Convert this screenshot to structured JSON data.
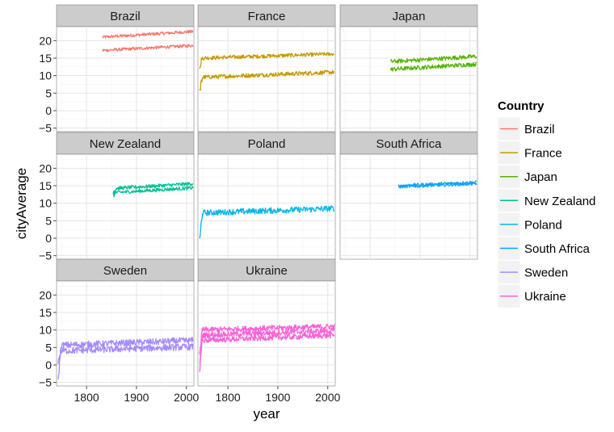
{
  "chart_data": {
    "type": "line",
    "facet_by": "Country",
    "xlabel": "year",
    "ylabel": "cityAverage",
    "xlim": [
      1740,
      2015
    ],
    "ylim": [
      -6,
      24
    ],
    "x_ticks": [
      1800,
      1900,
      2000
    ],
    "y_ticks": [
      -5,
      0,
      5,
      10,
      15,
      20
    ],
    "grid": true,
    "legend": {
      "title": "Country",
      "position": "right"
    },
    "panels": [
      {
        "country": "Brazil",
        "color": "#F8766D",
        "x_range": [
          1832,
          2013
        ],
        "lines": [
          {
            "start": 21.0,
            "end": 22.6,
            "noise": 0.45
          },
          {
            "start": 17.2,
            "end": 18.6,
            "noise": 0.45
          }
        ]
      },
      {
        "country": "France",
        "color": "#C49A00",
        "x_range": [
          1743,
          2013
        ],
        "lines": [
          {
            "start": 15.0,
            "end": 16.2,
            "noise": 0.55,
            "dip": 12.5
          },
          {
            "start": 9.5,
            "end": 11.0,
            "noise": 0.6,
            "dip": 5.0
          }
        ]
      },
      {
        "country": "Japan",
        "color": "#53B400",
        "x_range": [
          1841,
          2013
        ],
        "lines": [
          {
            "start": 14.0,
            "end": 15.5,
            "noise": 0.6
          },
          {
            "start": 11.8,
            "end": 13.3,
            "noise": 0.6
          }
        ]
      },
      {
        "country": "New Zealand",
        "color": "#00C094",
        "x_range": [
          1853,
          2013
        ],
        "lines": [
          {
            "start": 14.2,
            "end": 15.6,
            "noise": 0.5,
            "dip": 13.0
          },
          {
            "start": 13.0,
            "end": 14.4,
            "noise": 0.5,
            "dip": 12.2
          }
        ]
      },
      {
        "country": "Poland",
        "color": "#00B6EB",
        "x_range": [
          1743,
          2013
        ],
        "lines": [
          {
            "start": 7.2,
            "end": 8.5,
            "noise": 0.85,
            "dip": -1.0
          }
        ]
      },
      {
        "country": "South Africa",
        "color": "#06A4FF",
        "x_range": [
          1857,
          2013
        ],
        "lines": [
          {
            "start": 15.0,
            "end": 16.0,
            "noise": 0.45
          },
          {
            "start": 14.7,
            "end": 15.6,
            "noise": 0.45
          }
        ]
      },
      {
        "country": "Sweden",
        "color": "#A58AFF",
        "x_range": [
          1743,
          2013
        ],
        "lines": [
          {
            "start": 5.6,
            "end": 7.0,
            "noise": 0.95,
            "dip": -5.0
          },
          {
            "start": 4.0,
            "end": 5.2,
            "noise": 0.95,
            "dip": 1.0
          }
        ]
      },
      {
        "country": "Ukraine",
        "color": "#FB61D7",
        "x_range": [
          1743,
          2013
        ],
        "lines": [
          {
            "start": 10.0,
            "end": 11.0,
            "noise": 0.8,
            "dip": 3.0
          },
          {
            "start": 8.5,
            "end": 9.8,
            "noise": 0.8,
            "dip": -2.5
          },
          {
            "start": 7.0,
            "end": 8.5,
            "noise": 0.8,
            "dip": 0.5
          }
        ]
      }
    ]
  }
}
